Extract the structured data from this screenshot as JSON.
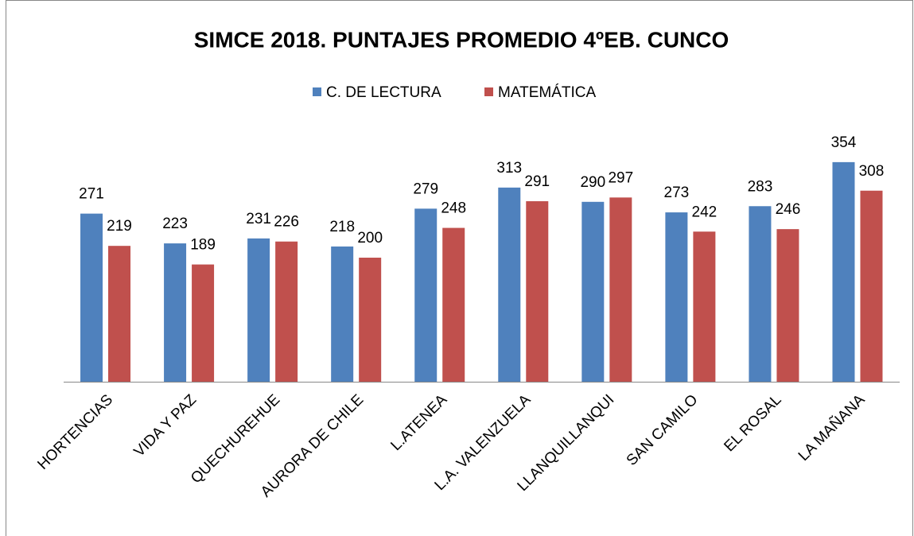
{
  "chart_data": {
    "type": "bar",
    "title": "SIMCE 2018. PUNTAJES PROMEDIO 4ºEB. CUNCO",
    "categories": [
      "HORTENCIAS",
      "VIDA Y PAZ",
      "QUECHUREHUE",
      "AURORA DE CHILE",
      "L.ATENEA",
      "L.A. VALENZUELA",
      "LLANQUILLANQUI",
      "SAN CAMILO",
      "EL ROSAL",
      "LA MAÑANA"
    ],
    "series": [
      {
        "name": "C. DE LECTURA",
        "color": "#4f81bd",
        "values": [
          271,
          223,
          231,
          218,
          279,
          313,
          290,
          273,
          283,
          354
        ]
      },
      {
        "name": "MATEMÁTICA",
        "color": "#c0504d",
        "values": [
          219,
          189,
          226,
          200,
          248,
          291,
          297,
          242,
          246,
          308
        ]
      }
    ],
    "ylim": [
      0,
      400
    ],
    "legend": "top"
  }
}
